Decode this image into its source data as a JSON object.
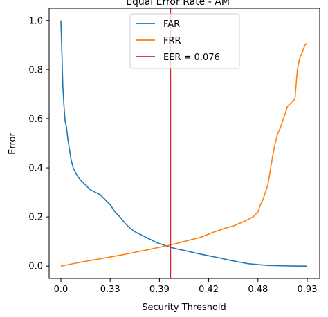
{
  "chart_data": {
    "type": "line",
    "title": "Equal Error Rate - AM",
    "xlabel": "Security Threshold",
    "ylabel": "Error",
    "x_tick_labels": [
      "0.0",
      "0.33",
      "0.39",
      "0.42",
      "0.48",
      "0.93"
    ],
    "yticks": [
      0.0,
      0.2,
      0.4,
      0.6,
      0.8,
      1.0
    ],
    "ytick_labels": [
      "0.0",
      "0.2",
      "0.4",
      "0.6",
      "0.8",
      "1.0"
    ],
    "ylim": [
      -0.05,
      1.05
    ],
    "x_index_range": [
      0,
      100
    ],
    "legend_position": "top-center",
    "series": [
      {
        "name": "FAR",
        "color": "#1f77b4",
        "x": [
          0,
          0.4,
          0.8,
          1.2,
          1.7,
          2.2,
          2.8,
          3.4,
          4.2,
          5,
          6.5,
          8,
          10,
          12,
          14,
          16,
          18,
          20,
          22,
          24,
          26,
          28,
          30,
          33,
          36,
          39,
          42,
          44,
          47,
          50,
          53,
          56,
          60,
          64,
          68,
          72,
          76,
          80,
          84,
          88,
          92,
          96,
          100
        ],
        "y": [
          1.0,
          0.87,
          0.73,
          0.66,
          0.59,
          0.57,
          0.52,
          0.48,
          0.43,
          0.4,
          0.37,
          0.35,
          0.33,
          0.31,
          0.3,
          0.29,
          0.27,
          0.25,
          0.22,
          0.2,
          0.175,
          0.155,
          0.14,
          0.125,
          0.11,
          0.095,
          0.085,
          0.078,
          0.07,
          0.064,
          0.057,
          0.05,
          0.042,
          0.034,
          0.025,
          0.017,
          0.01,
          0.006,
          0.003,
          0.002,
          0.001,
          0.0,
          0.0
        ]
      },
      {
        "name": "FRR",
        "color": "#ff7f0e",
        "x": [
          0,
          4,
          8,
          12,
          16,
          20,
          24,
          28,
          32,
          36,
          40,
          44,
          47,
          50,
          53,
          56,
          58,
          60,
          62,
          64,
          66,
          68,
          70,
          72,
          74,
          76,
          78,
          80,
          81,
          82,
          83,
          84,
          85,
          86,
          87,
          88,
          89,
          90,
          91,
          92,
          93,
          94,
          95,
          96,
          97,
          98,
          99,
          100
        ],
        "y": [
          0.0,
          0.008,
          0.016,
          0.023,
          0.03,
          0.037,
          0.044,
          0.052,
          0.06,
          0.068,
          0.077,
          0.085,
          0.092,
          0.1,
          0.108,
          0.115,
          0.122,
          0.13,
          0.138,
          0.145,
          0.152,
          0.158,
          0.163,
          0.172,
          0.18,
          0.19,
          0.2,
          0.22,
          0.25,
          0.27,
          0.3,
          0.33,
          0.39,
          0.45,
          0.5,
          0.54,
          0.56,
          0.59,
          0.62,
          0.65,
          0.66,
          0.67,
          0.68,
          0.8,
          0.85,
          0.87,
          0.9,
          0.91
        ]
      }
    ],
    "vline": {
      "name": "EER = 0.076",
      "x": 44.5,
      "color": "#d62728"
    }
  }
}
